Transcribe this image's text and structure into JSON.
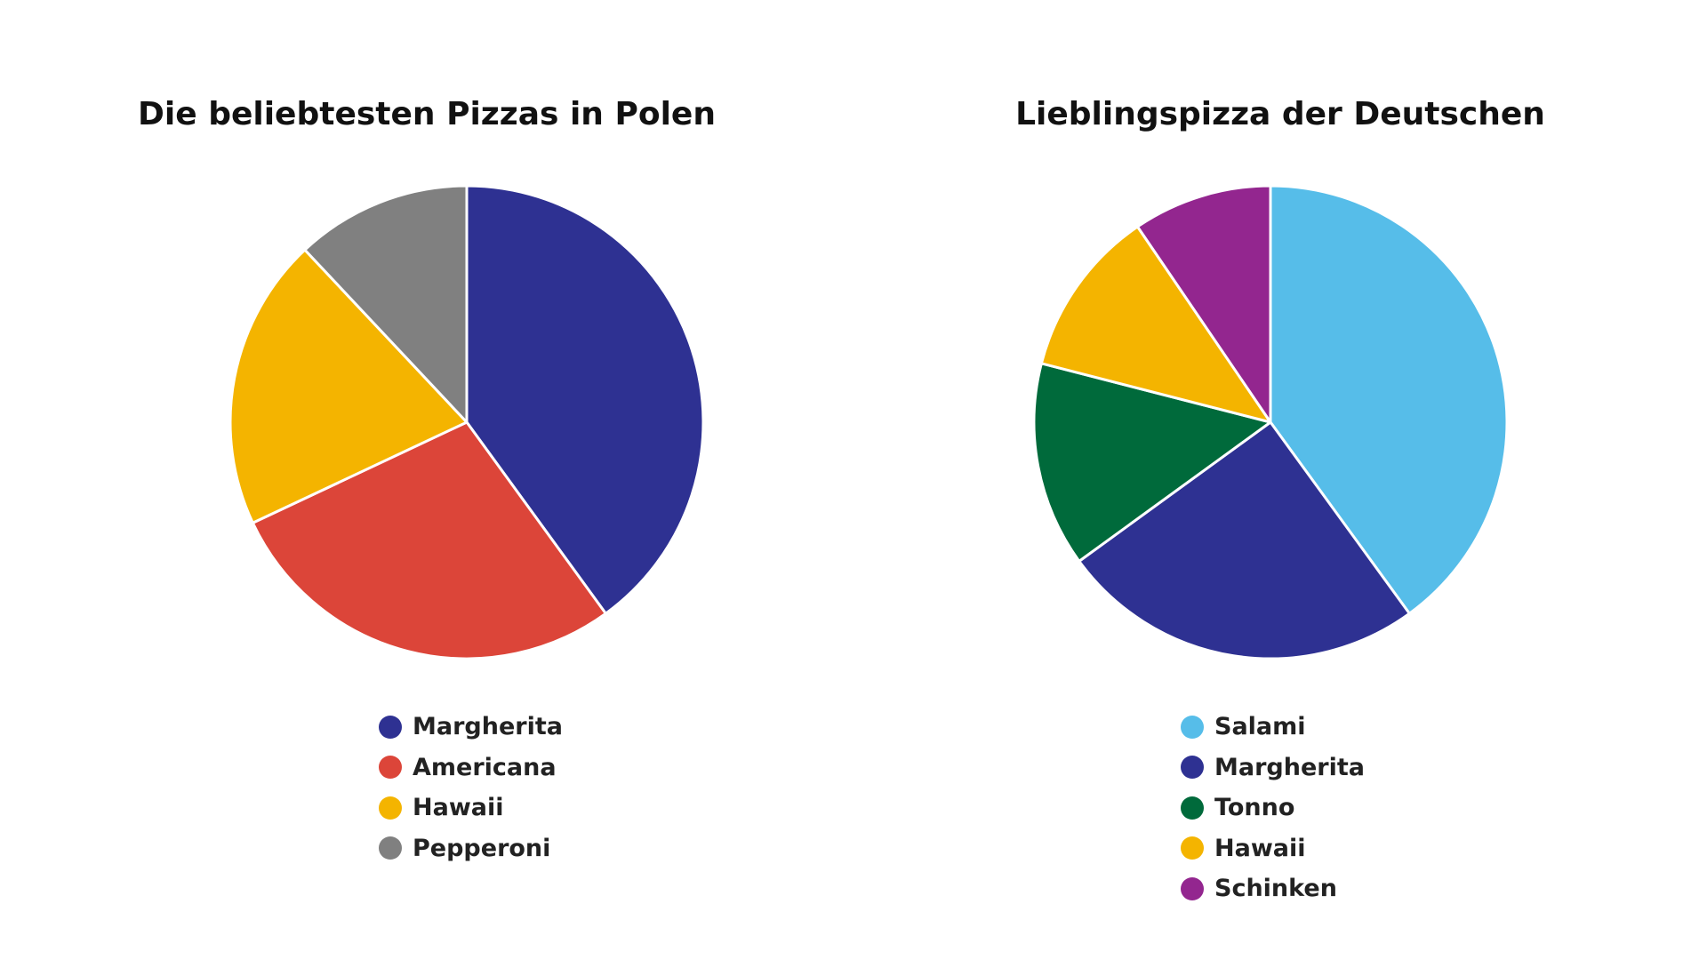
{
  "chart_data": [
    {
      "type": "pie",
      "title": "Die beliebtesten Pizzas in Polen",
      "legend_position": "bottom",
      "categories": [
        "Margherita",
        "Americana",
        "Hawaii",
        "Pepperoni"
      ],
      "values": [
        40,
        28,
        20,
        12
      ],
      "colors": [
        "#2e3192",
        "#dc4539",
        "#f4b400",
        "#808080"
      ]
    },
    {
      "type": "pie",
      "title": "Lieblingspizza der Deutschen",
      "legend_position": "bottom",
      "categories": [
        "Salami",
        "Margherita",
        "Tonno",
        "Hawaii",
        "Schinken"
      ],
      "values": [
        40,
        25,
        14,
        11.5,
        9.5
      ],
      "colors": [
        "#56bde9",
        "#2e3192",
        "#006a3b",
        "#f4b400",
        "#93268f"
      ]
    }
  ]
}
